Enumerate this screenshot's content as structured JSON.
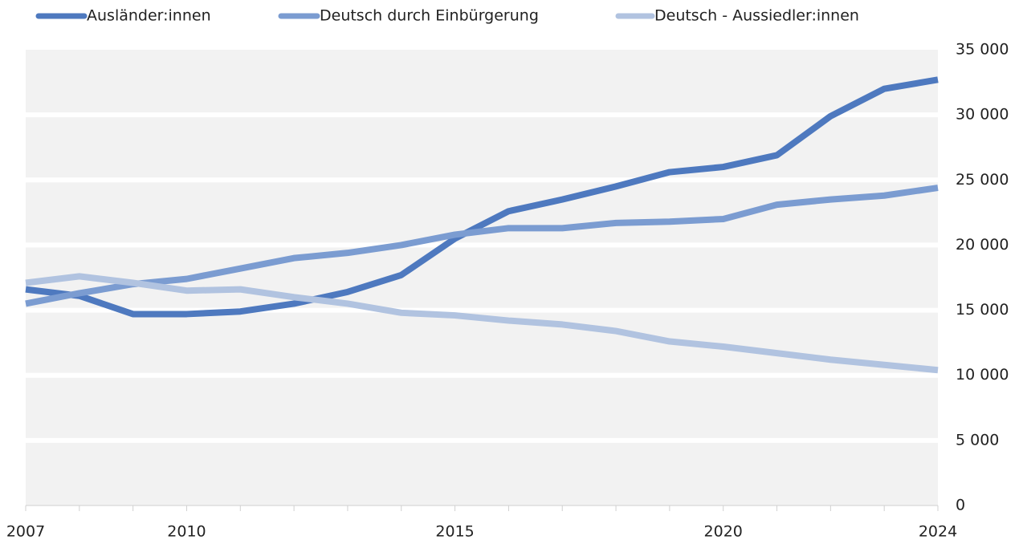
{
  "chart_data": {
    "type": "line",
    "x": [
      2007,
      2008,
      2009,
      2010,
      2011,
      2012,
      2013,
      2014,
      2015,
      2016,
      2017,
      2018,
      2019,
      2020,
      2021,
      2022,
      2023,
      2024
    ],
    "series": [
      {
        "name": "Ausländer:innen",
        "color": "#4e79bf",
        "values": [
          16600,
          16100,
          14700,
          14700,
          14900,
          15500,
          16400,
          17700,
          20500,
          22600,
          23500,
          24500,
          25600,
          26000,
          26900,
          29900,
          32000,
          32700
        ]
      },
      {
        "name": "Deutsch durch Einbürgerung",
        "color": "#7b9cd1",
        "values": [
          15500,
          16300,
          17000,
          17400,
          18200,
          19000,
          19400,
          20000,
          20800,
          21300,
          21300,
          21700,
          21800,
          22000,
          23100,
          23500,
          23800,
          24400
        ]
      },
      {
        "name": "Deutsch - Aussiedler:innen",
        "color": "#b1c3e0",
        "values": [
          17100,
          17600,
          17100,
          16500,
          16600,
          16000,
          15500,
          14800,
          14600,
          14200,
          13900,
          13400,
          12600,
          12200,
          11700,
          11200,
          10800,
          10400
        ]
      }
    ],
    "xlim": [
      2007,
      2024
    ],
    "xticks": [
      2007,
      2010,
      2015,
      2020,
      2024
    ],
    "ylim": [
      0,
      35000
    ],
    "yticks": [
      0,
      {
        "value": 5000,
        "label": "5 000"
      },
      {
        "value": 10000,
        "label": "10 000"
      },
      {
        "value": 15000,
        "label": "15 000"
      },
      {
        "value": 20000,
        "label": "20 000"
      },
      {
        "value": 25000,
        "label": "25 000"
      },
      {
        "value": 30000,
        "label": "30 000"
      },
      {
        "value": 35000,
        "label": "35 000"
      }
    ],
    "grid": true,
    "legend": "top"
  }
}
